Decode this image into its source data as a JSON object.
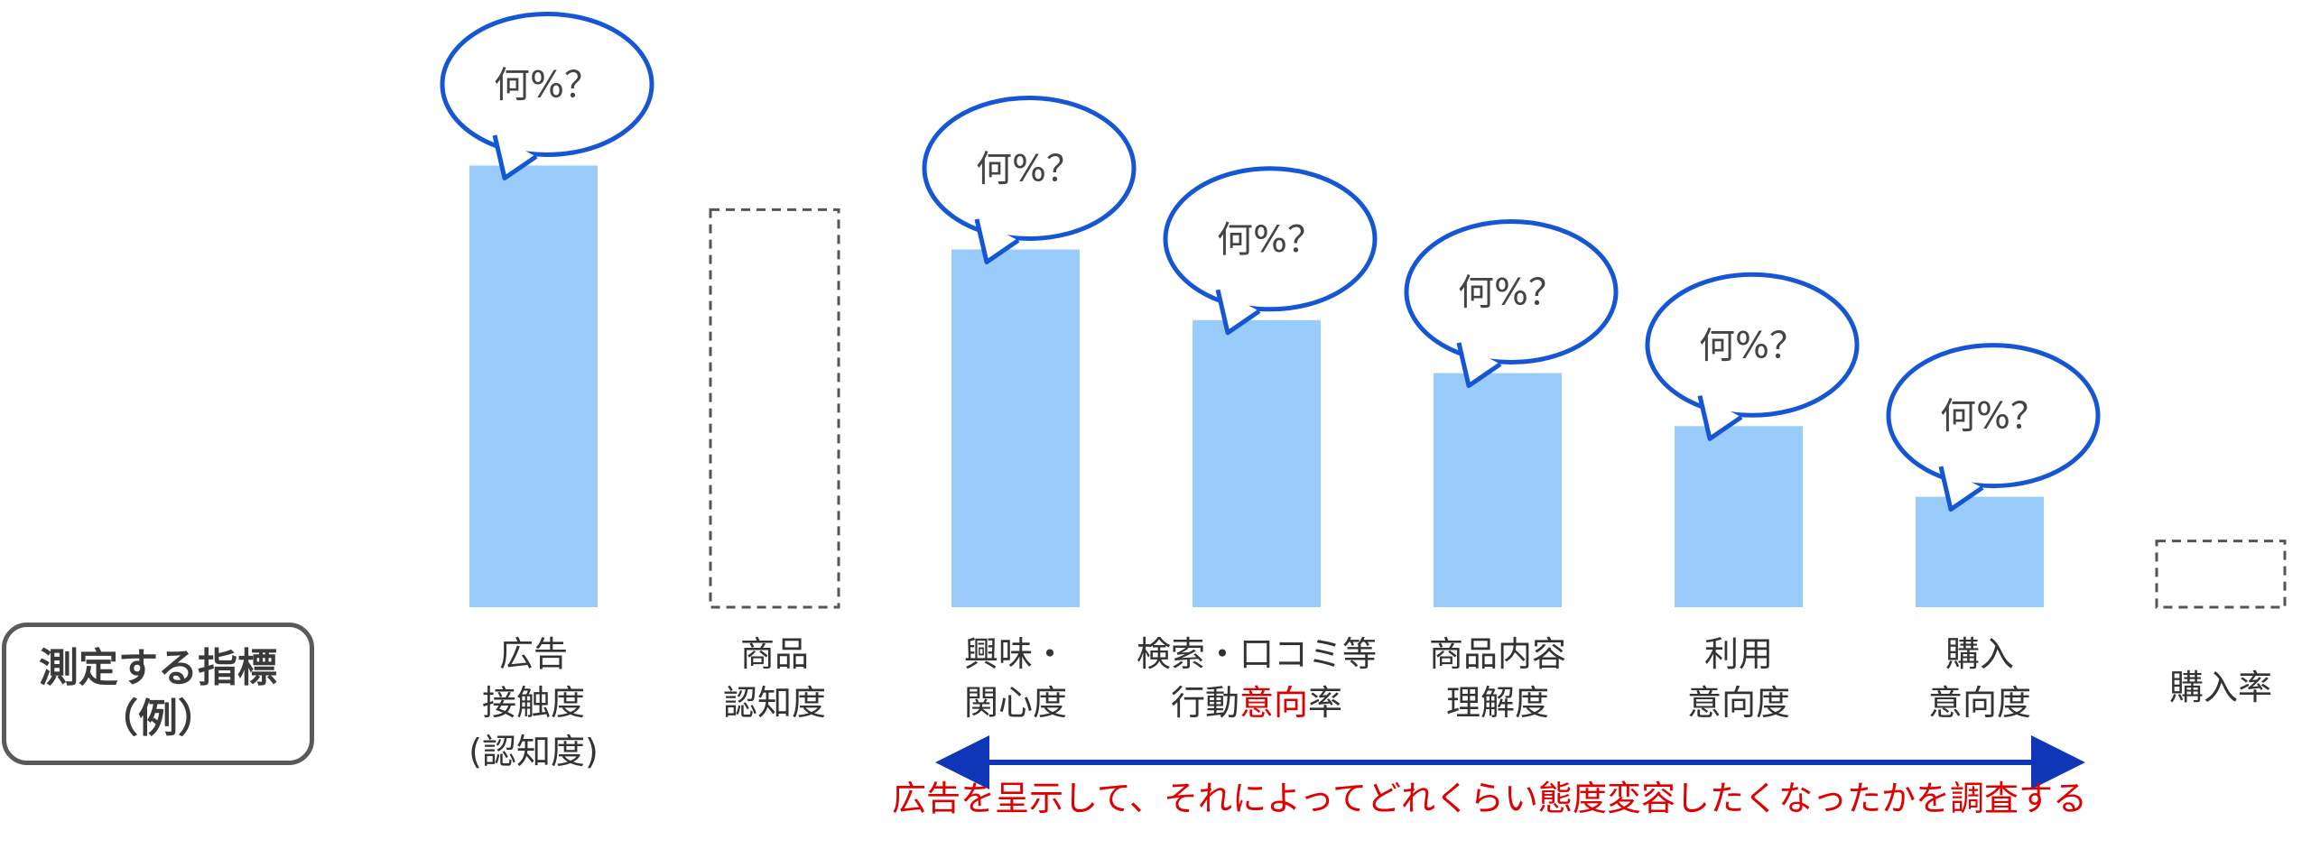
{
  "metric_box": {
    "line1": "測定する指標",
    "line2": "（例）"
  },
  "chart_data": {
    "type": "bar",
    "categories": [
      [
        "広告",
        "接触度",
        "(認知度)"
      ],
      [
        "商品",
        "認知度"
      ],
      [
        "興味・",
        "関心度"
      ],
      [
        "検索・口コミ等",
        "行動意向率"
      ],
      [
        "商品内容",
        "理解度"
      ],
      [
        "利用",
        "意向度"
      ],
      [
        "購入",
        "意向度"
      ],
      [
        "購入率"
      ]
    ],
    "highlight": {
      "category_index": 3,
      "line_index": 1,
      "text": "意向"
    },
    "values": [
      100,
      90,
      81,
      65,
      53,
      41,
      25,
      15
    ],
    "measured": [
      true,
      false,
      true,
      true,
      true,
      true,
      true,
      false
    ],
    "ylim": [
      0,
      105
    ],
    "bubble_label": "何%？",
    "annotation": "広告を呈示して、それによってどれくらい態度変容したくなったかを調査する",
    "colors": {
      "bar": "#99cbfb",
      "bubble_stroke": "#1556d4",
      "dashed": "#555555",
      "arrow": "#1036b8",
      "highlight": "#e00000"
    }
  }
}
